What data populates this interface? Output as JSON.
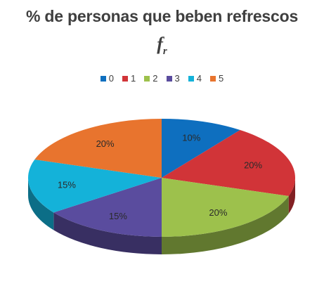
{
  "chart_data": {
    "type": "pie",
    "title": "% de personas que beben refrescos",
    "subtitle_main": "f",
    "subtitle_sub": "r",
    "legend_position": "top",
    "categories": [
      "0",
      "1",
      "2",
      "3",
      "4",
      "5"
    ],
    "values": [
      10,
      20,
      20,
      15,
      15,
      20
    ],
    "labels": [
      "10%",
      "20%",
      "20%",
      "15%",
      "15%",
      "20%"
    ],
    "colors": [
      "#0e6fbf",
      "#d13438",
      "#9dc14c",
      "#5a4c9e",
      "#14b2d9",
      "#e8742e"
    ],
    "style": "3d"
  }
}
